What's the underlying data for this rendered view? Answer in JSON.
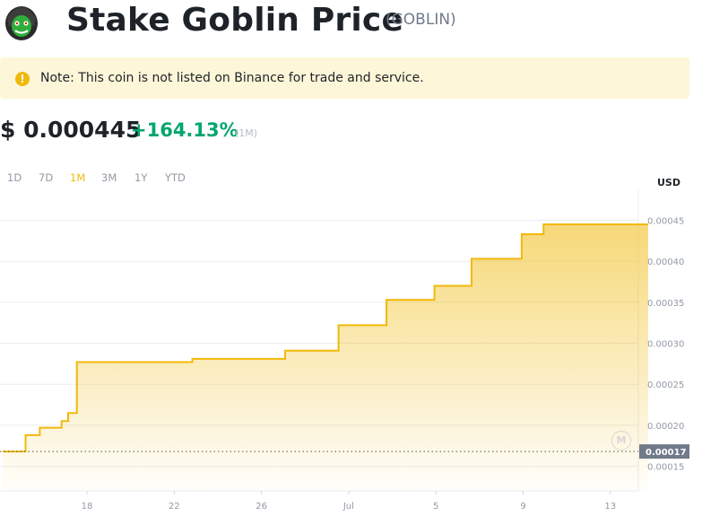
{
  "header": {
    "title": "Stake Goblin Price",
    "ticker": "(GOBLIN)"
  },
  "notice": {
    "text": "Note: This coin is not listed on Binance for trade and service.",
    "icon": "exclamation-icon",
    "icon_glyph": "!"
  },
  "price": {
    "value": "$ 0.000445",
    "change": "+164.13%",
    "period": "(1M)"
  },
  "tabs": [
    {
      "label": "1D",
      "active": false
    },
    {
      "label": "7D",
      "active": false
    },
    {
      "label": "1M",
      "active": true
    },
    {
      "label": "3M",
      "active": false
    },
    {
      "label": "1Y",
      "active": false
    },
    {
      "label": "YTD",
      "active": false
    }
  ],
  "colors": {
    "accent": "#f0b90b",
    "positive": "#03a66d",
    "line": "#f0b90b",
    "current_price_tag": "#707a8a"
  },
  "chart_data": {
    "type": "area",
    "currency_label": "USD",
    "y_ticks": [
      "0.00045",
      "0.00040",
      "0.00035",
      "0.00030",
      "0.00025",
      "0.00020",
      "0.00015"
    ],
    "y_range": [
      0.00012,
      0.00048
    ],
    "x_ticks": [
      "18",
      "22",
      "26",
      "Jul",
      "5",
      "9",
      "13"
    ],
    "start_price_label": "0.00017",
    "start_price": 0.000168,
    "series": [
      {
        "points": [
          [
            0,
            0.000168
          ],
          [
            1.05,
            0.000168
          ],
          [
            1.05,
            0.000188
          ],
          [
            1.7,
            0.000188
          ],
          [
            1.7,
            0.000197
          ],
          [
            2.7,
            0.000197
          ],
          [
            2.7,
            0.000205
          ],
          [
            3.0,
            0.000205
          ],
          [
            3.0,
            0.000215
          ],
          [
            3.4,
            0.000215
          ],
          [
            3.4,
            0.000277
          ],
          [
            8.7,
            0.000277
          ],
          [
            8.7,
            0.000281
          ],
          [
            12.95,
            0.000281
          ],
          [
            12.95,
            0.000291
          ],
          [
            15.4,
            0.000291
          ],
          [
            15.4,
            0.000322
          ],
          [
            17.6,
            0.000322
          ],
          [
            17.6,
            0.000353
          ],
          [
            19.8,
            0.000353
          ],
          [
            19.8,
            0.00037
          ],
          [
            21.5,
            0.00037
          ],
          [
            21.5,
            0.000403
          ],
          [
            23.8,
            0.000403
          ],
          [
            23.8,
            0.000433
          ],
          [
            24.8,
            0.000433
          ],
          [
            24.8,
            0.000445
          ],
          [
            29.6,
            0.000445
          ]
        ]
      }
    ]
  }
}
